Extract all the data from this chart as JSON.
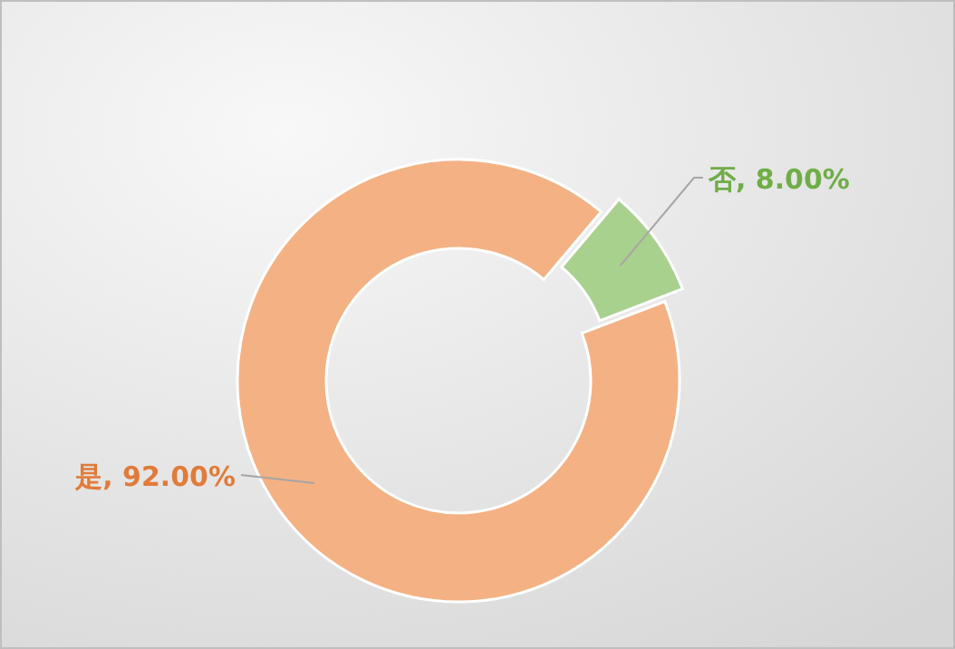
{
  "chart_data": {
    "type": "donut",
    "categories": [
      "是",
      "否"
    ],
    "values": [
      92,
      8
    ],
    "colors": [
      "#f4b183",
      "#a9d18e"
    ],
    "value_labels": [
      "92.00%",
      "8.00%"
    ]
  }
}
